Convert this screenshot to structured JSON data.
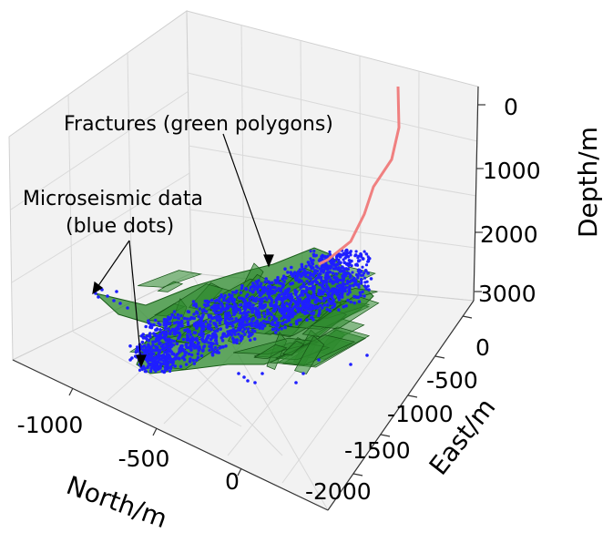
{
  "chart_data": {
    "type": "scatter",
    "projection": "3d",
    "title": "",
    "xlabel": "North/m",
    "ylabel": "East/m",
    "zlabel": "Depth/m",
    "xlim": [
      -1300,
      300
    ],
    "ylim": [
      -2000,
      0
    ],
    "zlim": [
      0,
      3000
    ],
    "x_ticks": [
      "-1000",
      "-500",
      "0"
    ],
    "y_ticks": [
      "0",
      "-500",
      "-1000",
      "-1500",
      "-2000"
    ],
    "z_ticks": [
      "0",
      "1000",
      "2000",
      "3000"
    ],
    "grid": true,
    "annotations": [
      {
        "text": "Fractures (green polygons)"
      },
      {
        "text": "Microseismic data"
      },
      {
        "text": "(blue dots)"
      }
    ],
    "series": [
      {
        "name": "Fractures (green polygons)",
        "kind": "polygons",
        "color": "#2e8b2e"
      },
      {
        "name": "Microseismic data (blue dots)",
        "kind": "points",
        "color": "#1f1fff"
      },
      {
        "name": "",
        "kind": "wellbore",
        "color": "#f08080"
      }
    ]
  }
}
